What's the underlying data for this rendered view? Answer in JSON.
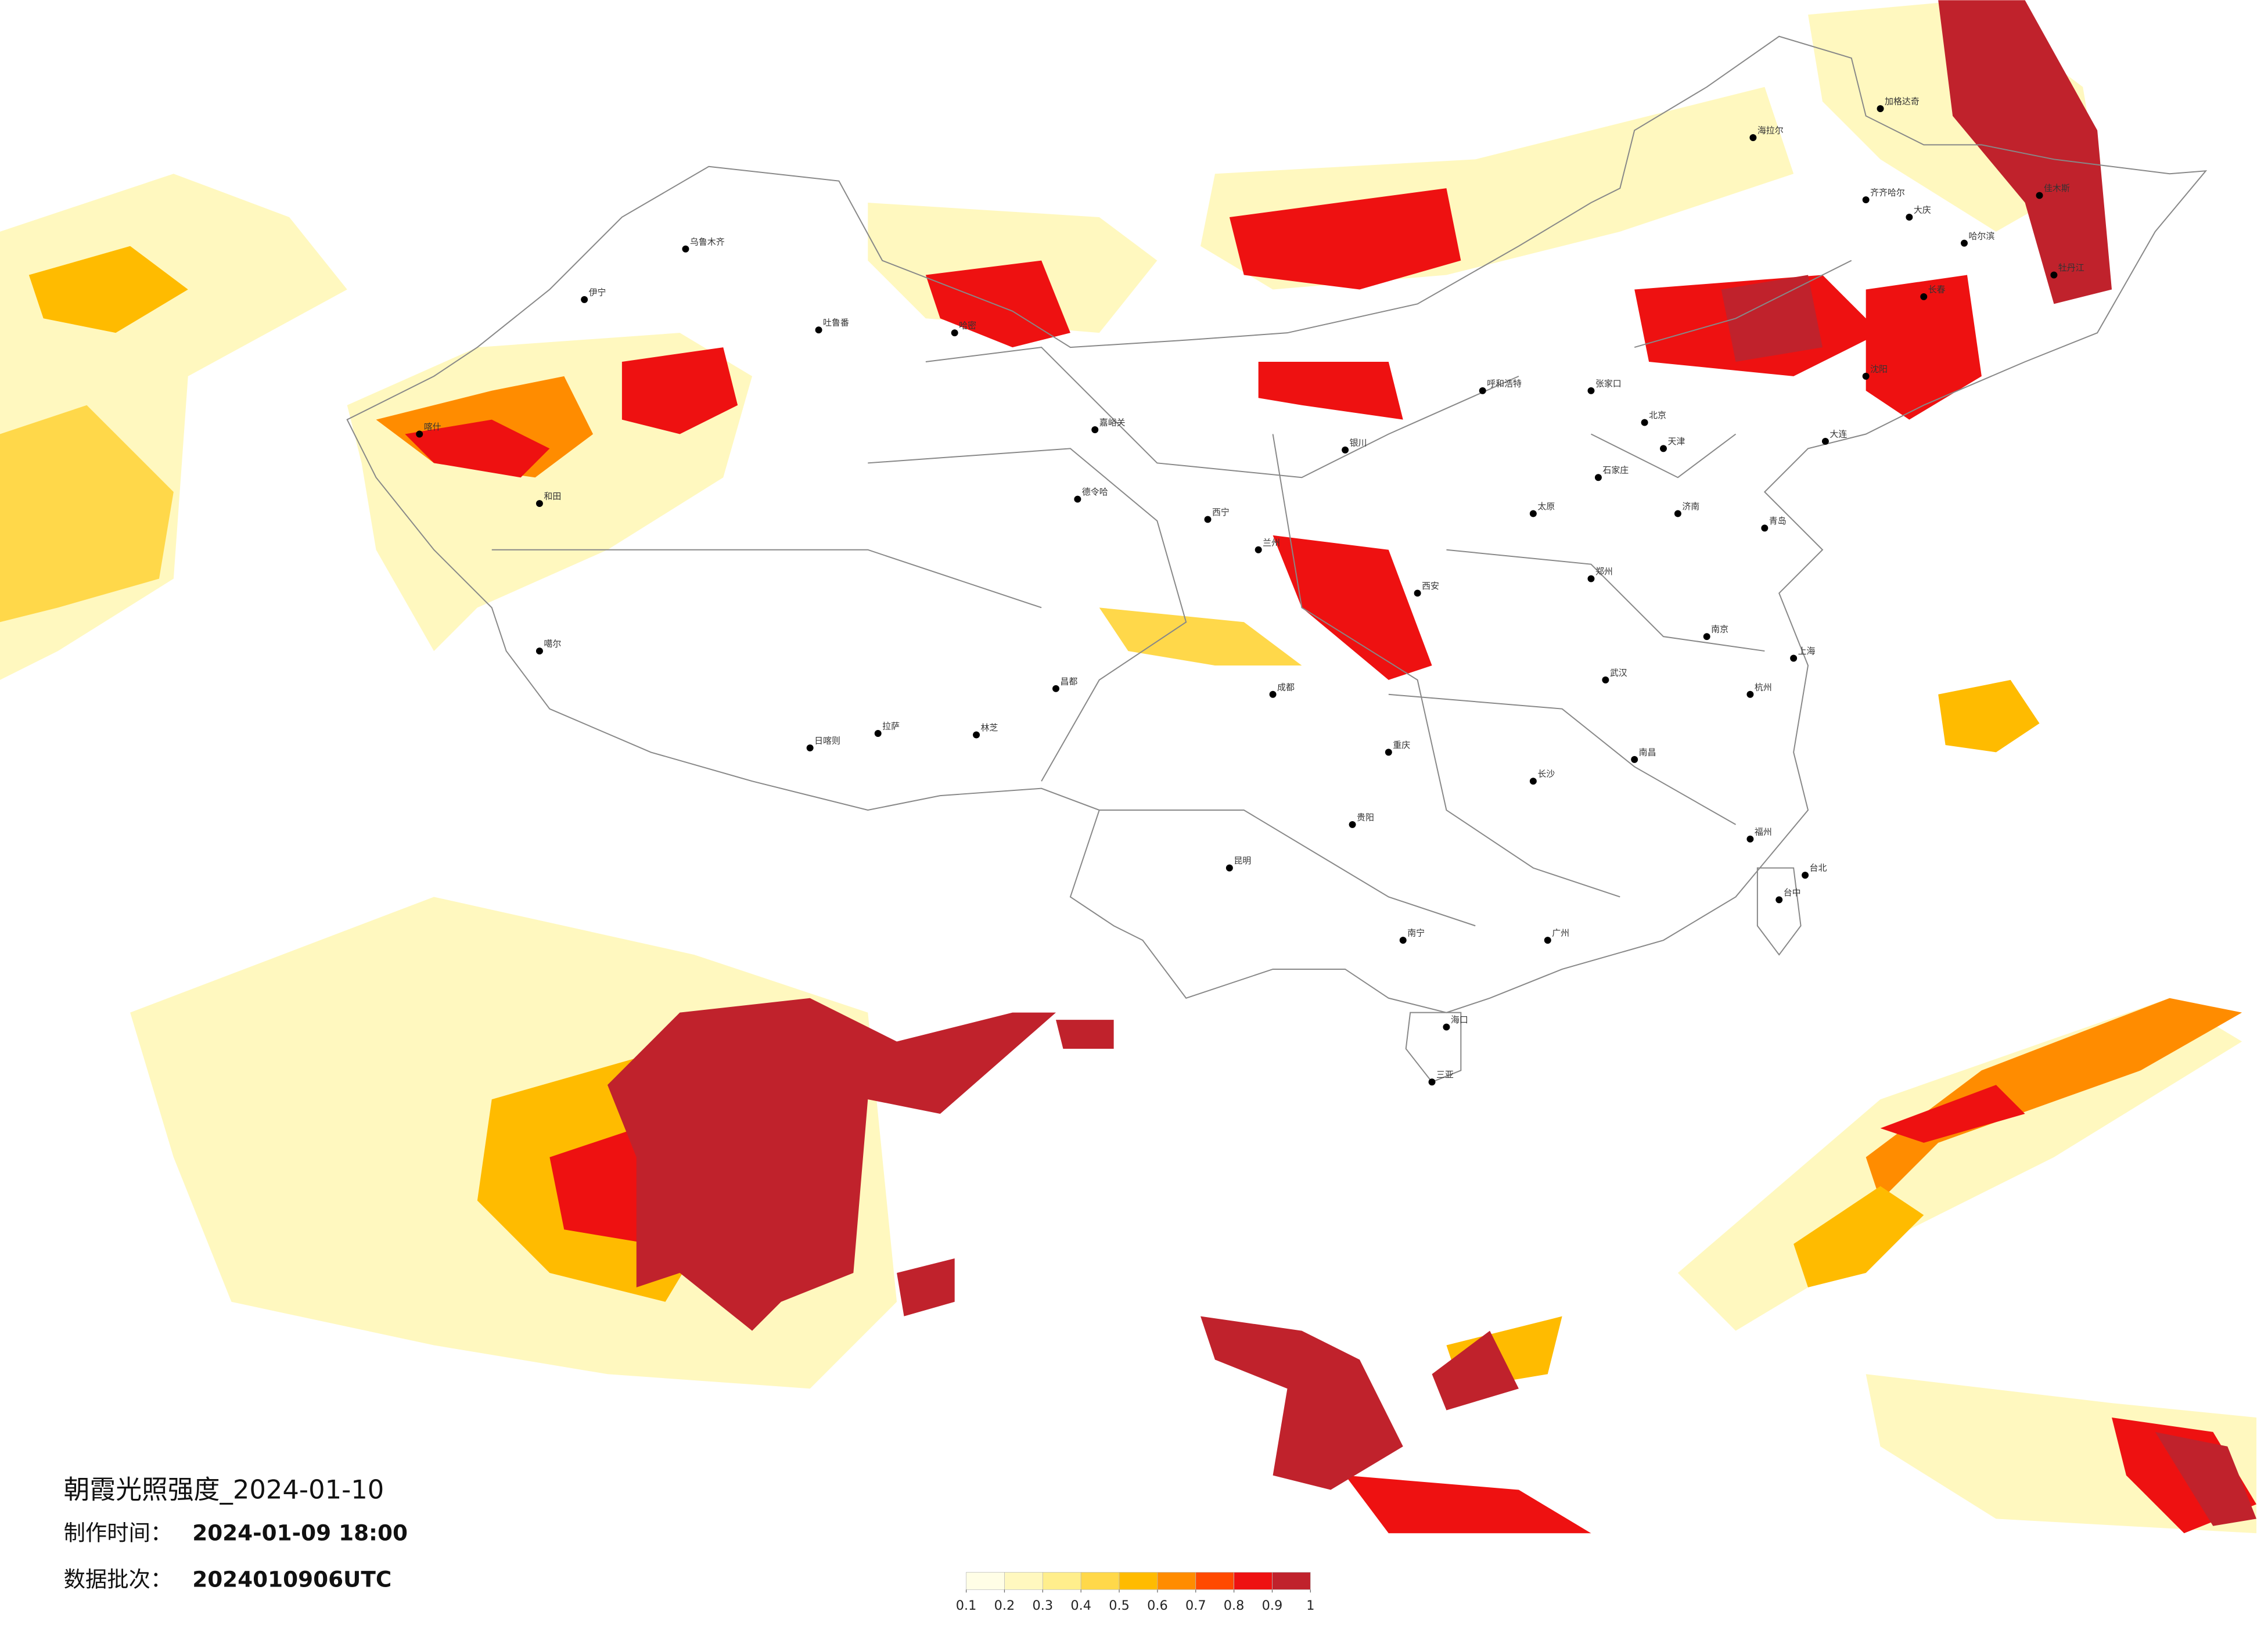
{
  "map": {
    "title": "朝霞光照强度_2024-01-10",
    "production_time_label": "制作时间：",
    "production_time": "2024-01-09 18:00",
    "batch_label": "数据批次：",
    "batch": "2024010906UTC",
    "colorbar": {
      "ticks": [
        0.1,
        0.2,
        0.3,
        0.4,
        0.5,
        0.6,
        0.7,
        0.8,
        0.9,
        1
      ],
      "colors": [
        "#fffee6",
        "#fff8bf",
        "#ffee8c",
        "#ffd84a",
        "#ffbb00",
        "#ff8c00",
        "#ff4a00",
        "#ee1111",
        "#c0222c"
      ]
    },
    "cities": [
      "伊宁",
      "吐鲁番",
      "乌鲁木齐",
      "喀什",
      "和田",
      "哈密",
      "嘉峪关",
      "德令哈",
      "噶尔",
      "日喀则",
      "拉萨",
      "林芝",
      "昌都",
      "西宁",
      "兰州",
      "银川",
      "呼和浩特",
      "北京",
      "天津",
      "石家庄",
      "太原",
      "济南",
      "青岛",
      "郑州",
      "西安",
      "成都",
      "重庆",
      "贵阳",
      "昆明",
      "南宁",
      "广州",
      "长沙",
      "武汉",
      "南昌",
      "杭州",
      "南京",
      "上海",
      "福州",
      "台北",
      "台中",
      "海口",
      "三亚",
      "哈尔滨",
      "长春",
      "沈阳",
      "大连",
      "齐齐哈尔",
      "海拉尔",
      "加格达奇",
      "佳木斯",
      "牡丹江",
      "大庆",
      "张家口"
    ]
  }
}
